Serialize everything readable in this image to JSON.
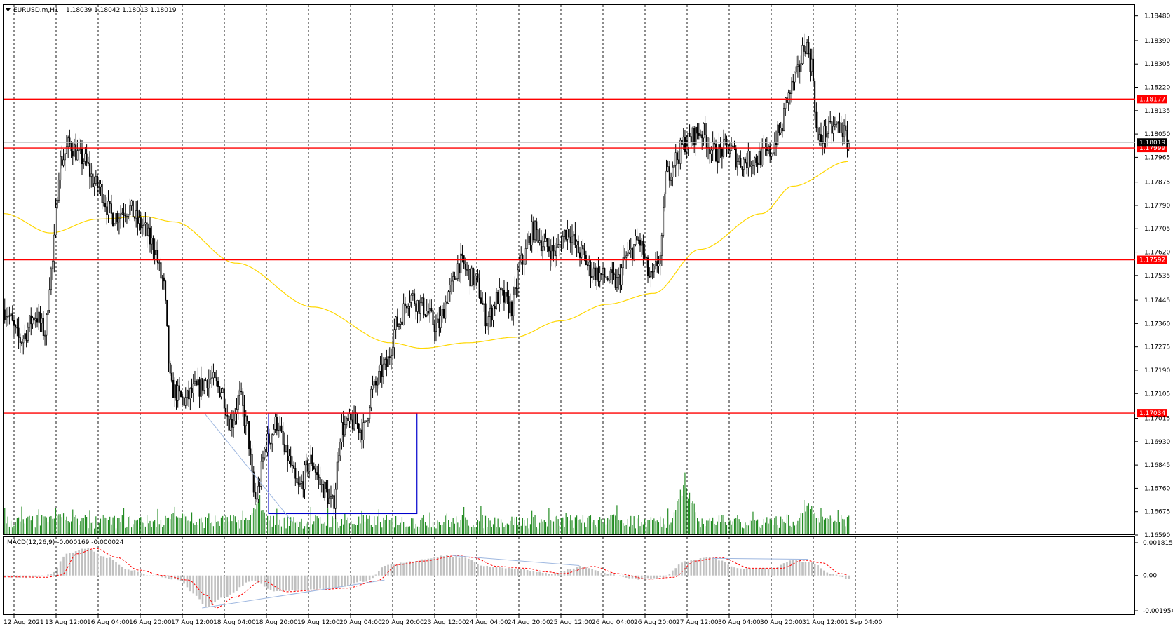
{
  "header": {
    "symbol": "EURUSD.m,H1",
    "ohlc": "1.18039 1.18042 1.18013 1.18019",
    "collapse_icon": "triangle-down-icon"
  },
  "macd_header": "MACD(12,26,9) -0.000169 -0.000024",
  "colors": {
    "up_candle": "#ffffff",
    "down_candle": "#000000",
    "level_line": "#ff0000",
    "moving_average": "#ffd700",
    "volume": "#228b22",
    "macd_histogram": "#c0c0c0",
    "macd_signal": "#ff0000",
    "trendline": "#9fb8e0",
    "box": "#0000cc",
    "bid_line": "#c0c0c0",
    "bid_tag": "#000000"
  },
  "chart_data": {
    "type": "candlestick",
    "timeframe": "H1",
    "price_axis": {
      "range": [
        1.1659,
        1.1852
      ],
      "ticks": [
        "1.18480",
        "1.18390",
        "1.18305",
        "1.18220",
        "1.18135",
        "1.18050",
        "1.17965",
        "1.17875",
        "1.17790",
        "1.17705",
        "1.17620",
        "1.17535",
        "1.17445",
        "1.17360",
        "1.17275",
        "1.17190",
        "1.17105",
        "1.17015",
        "1.16930",
        "1.16845",
        "1.16760",
        "1.16675",
        "1.16590"
      ]
    },
    "time_axis": {
      "labels": [
        "12 Aug 2021",
        "13 Aug 12:00",
        "16 Aug 04:00",
        "16 Aug 20:00",
        "17 Aug 12:00",
        "18 Aug 04:00",
        "18 Aug 20:00",
        "19 Aug 12:00",
        "20 Aug 04:00",
        "20 Aug 20:00",
        "23 Aug 12:00",
        "24 Aug 04:00",
        "24 Aug 20:00",
        "25 Aug 12:00",
        "26 Aug 04:00",
        "26 Aug 20:00",
        "27 Aug 12:00",
        "30 Aug 04:00",
        "30 Aug 20:00",
        "31 Aug 12:00",
        "1 Sep 04:00"
      ]
    },
    "price_anchors": [
      [
        0,
        1.1741
      ],
      [
        10,
        1.173
      ],
      [
        20,
        1.1739
      ],
      [
        26,
        1.1733
      ],
      [
        30,
        1.1755
      ],
      [
        36,
        1.1795
      ],
      [
        42,
        1.1801
      ],
      [
        50,
        1.1796
      ],
      [
        60,
        1.1786
      ],
      [
        70,
        1.1775
      ],
      [
        80,
        1.1778
      ],
      [
        88,
        1.1772
      ],
      [
        96,
        1.1765
      ],
      [
        102,
        1.1752
      ],
      [
        108,
        1.1712
      ],
      [
        116,
        1.1708
      ],
      [
        124,
        1.1712
      ],
      [
        132,
        1.1716
      ],
      [
        140,
        1.1712
      ],
      [
        146,
        1.17
      ],
      [
        152,
        1.1709
      ],
      [
        156,
        1.17
      ],
      [
        162,
        1.1672
      ],
      [
        170,
        1.1693
      ],
      [
        176,
        1.17
      ],
      [
        182,
        1.1688
      ],
      [
        190,
        1.1676
      ],
      [
        198,
        1.1686
      ],
      [
        206,
        1.1676
      ],
      [
        212,
        1.167
      ],
      [
        218,
        1.1698
      ],
      [
        226,
        1.17
      ],
      [
        232,
        1.1697
      ],
      [
        238,
        1.1712
      ],
      [
        246,
        1.172
      ],
      [
        254,
        1.1736
      ],
      [
        262,
        1.1746
      ],
      [
        270,
        1.1742
      ],
      [
        280,
        1.1735
      ],
      [
        288,
        1.1748
      ],
      [
        294,
        1.1758
      ],
      [
        304,
        1.1752
      ],
      [
        312,
        1.1738
      ],
      [
        320,
        1.1746
      ],
      [
        328,
        1.1742
      ],
      [
        334,
        1.1758
      ],
      [
        342,
        1.177
      ],
      [
        350,
        1.1764
      ],
      [
        356,
        1.1762
      ],
      [
        364,
        1.177
      ],
      [
        372,
        1.1762
      ],
      [
        380,
        1.1755
      ],
      [
        388,
        1.1753
      ],
      [
        396,
        1.1751
      ],
      [
        402,
        1.176
      ],
      [
        410,
        1.1766
      ],
      [
        418,
        1.1752
      ],
      [
        424,
        1.176
      ],
      [
        428,
        1.179
      ],
      [
        434,
        1.1796
      ],
      [
        440,
        1.1802
      ],
      [
        450,
        1.1806
      ],
      [
        460,
        1.1798
      ],
      [
        468,
        1.18
      ],
      [
        476,
        1.1795
      ],
      [
        486,
        1.1796
      ],
      [
        494,
        1.1798
      ],
      [
        502,
        1.1806
      ],
      [
        506,
        1.1818
      ],
      [
        512,
        1.1826
      ],
      [
        518,
        1.1838
      ],
      [
        522,
        1.183
      ],
      [
        526,
        1.1802
      ],
      [
        532,
        1.1806
      ],
      [
        540,
        1.1808
      ],
      [
        546,
        1.1802
      ]
    ],
    "bars_count": 547,
    "levels": [
      {
        "price": 1.18177,
        "label": "1.18177"
      },
      {
        "price": 1.17999,
        "label": "1.17999"
      },
      {
        "price": 1.17592,
        "label": "1.17592"
      },
      {
        "price": 1.17034,
        "label": "1.17034"
      }
    ],
    "bid": {
      "price": 1.18019,
      "label": "1.18019"
    },
    "moving_average_anchors": [
      [
        0,
        1.1776
      ],
      [
        30,
        1.1769
      ],
      [
        60,
        1.1774
      ],
      [
        90,
        1.1775
      ],
      [
        110,
        1.1773
      ],
      [
        150,
        1.1758
      ],
      [
        200,
        1.1742
      ],
      [
        250,
        1.1729
      ],
      [
        270,
        1.1727
      ],
      [
        300,
        1.1729
      ],
      [
        330,
        1.1731
      ],
      [
        360,
        1.1737
      ],
      [
        390,
        1.1743
      ],
      [
        420,
        1.1747
      ],
      [
        450,
        1.1763
      ],
      [
        490,
        1.1776
      ],
      [
        510,
        1.1786
      ],
      [
        546,
        1.1795
      ]
    ],
    "box_annotation": {
      "bar_from": 171,
      "bar_to": 267,
      "price_top": 1.17034,
      "price_bottom": 1.16668
    },
    "trendline_annotation": {
      "from": [
        130,
        1.1703
      ],
      "to": [
        186,
        1.1664
      ]
    },
    "volume_spikes": [
      [
        36,
        0.4
      ],
      [
        110,
        0.38
      ],
      [
        116,
        0.35
      ],
      [
        164,
        0.55
      ],
      [
        395,
        0.35
      ],
      [
        440,
        0.95
      ],
      [
        520,
        0.55
      ]
    ],
    "macd_axis": {
      "ticks": [
        "0.001815",
        "0.00",
        "-0.001954"
      ],
      "range": [
        -0.001954,
        0.001815
      ]
    },
    "macd_anchors": [
      [
        0,
        -8e-05
      ],
      [
        20,
        -0.0001
      ],
      [
        30,
        3e-05
      ],
      [
        40,
        0.0012
      ],
      [
        52,
        0.0015
      ],
      [
        66,
        0.001
      ],
      [
        80,
        0.0003
      ],
      [
        96,
        0.0
      ],
      [
        112,
        -0.00025
      ],
      [
        124,
        -0.0011
      ],
      [
        130,
        -0.0018
      ],
      [
        142,
        -0.0012
      ],
      [
        160,
        -0.0003
      ],
      [
        176,
        -0.0009
      ],
      [
        196,
        -0.0008
      ],
      [
        214,
        -0.0007
      ],
      [
        234,
        -0.0003
      ],
      [
        248,
        0.0006
      ],
      [
        264,
        0.0008
      ],
      [
        286,
        0.0011
      ],
      [
        296,
        0.001
      ],
      [
        312,
        0.0005
      ],
      [
        330,
        0.0004
      ],
      [
        344,
        0.0002
      ],
      [
        354,
        0.0001
      ],
      [
        374,
        0.0005
      ],
      [
        390,
        0.0001
      ],
      [
        410,
        -0.0002
      ],
      [
        426,
        -0.0001
      ],
      [
        440,
        0.0008
      ],
      [
        456,
        0.001
      ],
      [
        476,
        0.0004
      ],
      [
        496,
        0.0004
      ],
      [
        510,
        0.00085
      ],
      [
        522,
        0.0007
      ],
      [
        534,
        0.0001
      ],
      [
        546,
        -0.00017
      ]
    ],
    "macd_divergence_lines": [
      {
        "from": [
          290,
          0.0011
        ],
        "to": [
          372,
          0.00055
        ]
      },
      {
        "from": [
          458,
          0.00095
        ],
        "to": [
          520,
          0.0009
        ]
      },
      {
        "from": [
          128,
          -0.0018
        ],
        "to": [
          246,
          -0.00025
        ]
      }
    ]
  }
}
